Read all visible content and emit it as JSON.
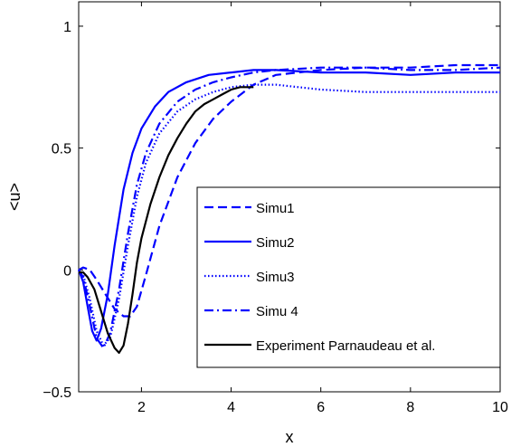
{
  "chart_data": {
    "type": "line",
    "xlabel": "x",
    "ylabel": "<u>",
    "xlim": [
      0.6,
      10
    ],
    "ylim": [
      -0.5,
      1.1
    ],
    "xticks": [
      2,
      4,
      6,
      8,
      10
    ],
    "yticks": [
      -0.5,
      0,
      0.5,
      1
    ],
    "ytick_labels": [
      "−0.5",
      "0",
      "0.5",
      "1"
    ],
    "grid": false,
    "legend_position": "center-right",
    "series": [
      {
        "name": "Simu1",
        "color": "#0000ff",
        "style": "dashed",
        "x": [
          0.6,
          0.7,
          0.85,
          1.0,
          1.2,
          1.4,
          1.6,
          1.75,
          1.9,
          2.1,
          2.4,
          2.8,
          3.2,
          3.6,
          4.0,
          4.5,
          5.0,
          6.0,
          7.0,
          8.0,
          9.0,
          10.0
        ],
        "y": [
          0.0,
          0.01,
          0.0,
          -0.04,
          -0.1,
          -0.16,
          -0.19,
          -0.19,
          -0.15,
          -0.02,
          0.18,
          0.38,
          0.52,
          0.62,
          0.69,
          0.76,
          0.8,
          0.82,
          0.83,
          0.83,
          0.84,
          0.84
        ]
      },
      {
        "name": "Simu2",
        "color": "#0000ff",
        "style": "solid",
        "x": [
          0.6,
          0.7,
          0.8,
          0.9,
          1.0,
          1.1,
          1.25,
          1.4,
          1.6,
          1.8,
          2.0,
          2.3,
          2.6,
          3.0,
          3.5,
          4.0,
          4.5,
          5.0,
          6.0,
          7.0,
          8.0,
          9.0,
          10.0
        ],
        "y": [
          0.0,
          -0.05,
          -0.15,
          -0.25,
          -0.29,
          -0.24,
          -0.1,
          0.1,
          0.33,
          0.48,
          0.58,
          0.67,
          0.73,
          0.77,
          0.8,
          0.81,
          0.82,
          0.82,
          0.81,
          0.81,
          0.8,
          0.81,
          0.81
        ]
      },
      {
        "name": "Simu3",
        "color": "#0000ff",
        "style": "dotted",
        "x": [
          0.6,
          0.7,
          0.85,
          1.0,
          1.15,
          1.3,
          1.5,
          1.7,
          1.9,
          2.1,
          2.4,
          2.8,
          3.2,
          3.6,
          4.0,
          4.5,
          5.0,
          5.5,
          6.0,
          7.0,
          8.0,
          9.0,
          10.0
        ],
        "y": [
          0.0,
          -0.02,
          -0.12,
          -0.25,
          -0.31,
          -0.28,
          -0.12,
          0.1,
          0.3,
          0.44,
          0.56,
          0.65,
          0.7,
          0.73,
          0.75,
          0.76,
          0.76,
          0.75,
          0.74,
          0.73,
          0.73,
          0.73,
          0.73
        ]
      },
      {
        "name": "Simu 4",
        "color": "#0000ff",
        "style": "dashdot",
        "x": [
          0.6,
          0.7,
          0.85,
          1.0,
          1.15,
          1.3,
          1.5,
          1.7,
          1.9,
          2.1,
          2.4,
          2.8,
          3.2,
          3.6,
          4.0,
          4.5,
          5.0,
          6.0,
          7.0,
          8.0,
          9.0,
          10.0
        ],
        "y": [
          0.0,
          -0.03,
          -0.15,
          -0.28,
          -0.32,
          -0.26,
          -0.08,
          0.15,
          0.35,
          0.48,
          0.6,
          0.69,
          0.74,
          0.77,
          0.79,
          0.81,
          0.82,
          0.83,
          0.83,
          0.82,
          0.82,
          0.83
        ]
      },
      {
        "name": "Experiment Parnaudeau et al.",
        "color": "#000000",
        "style": "solid",
        "x": [
          0.6,
          0.7,
          0.8,
          0.95,
          1.1,
          1.25,
          1.4,
          1.5,
          1.6,
          1.7,
          1.8,
          1.9,
          2.0,
          2.2,
          2.4,
          2.6,
          2.8,
          3.0,
          3.2,
          3.4,
          3.6,
          3.8,
          4.0,
          4.2,
          4.5
        ],
        "y": [
          -0.01,
          -0.01,
          -0.03,
          -0.08,
          -0.17,
          -0.26,
          -0.32,
          -0.34,
          -0.31,
          -0.22,
          -0.1,
          0.03,
          0.13,
          0.27,
          0.38,
          0.47,
          0.54,
          0.6,
          0.65,
          0.68,
          0.7,
          0.72,
          0.74,
          0.75,
          0.75
        ]
      }
    ]
  }
}
